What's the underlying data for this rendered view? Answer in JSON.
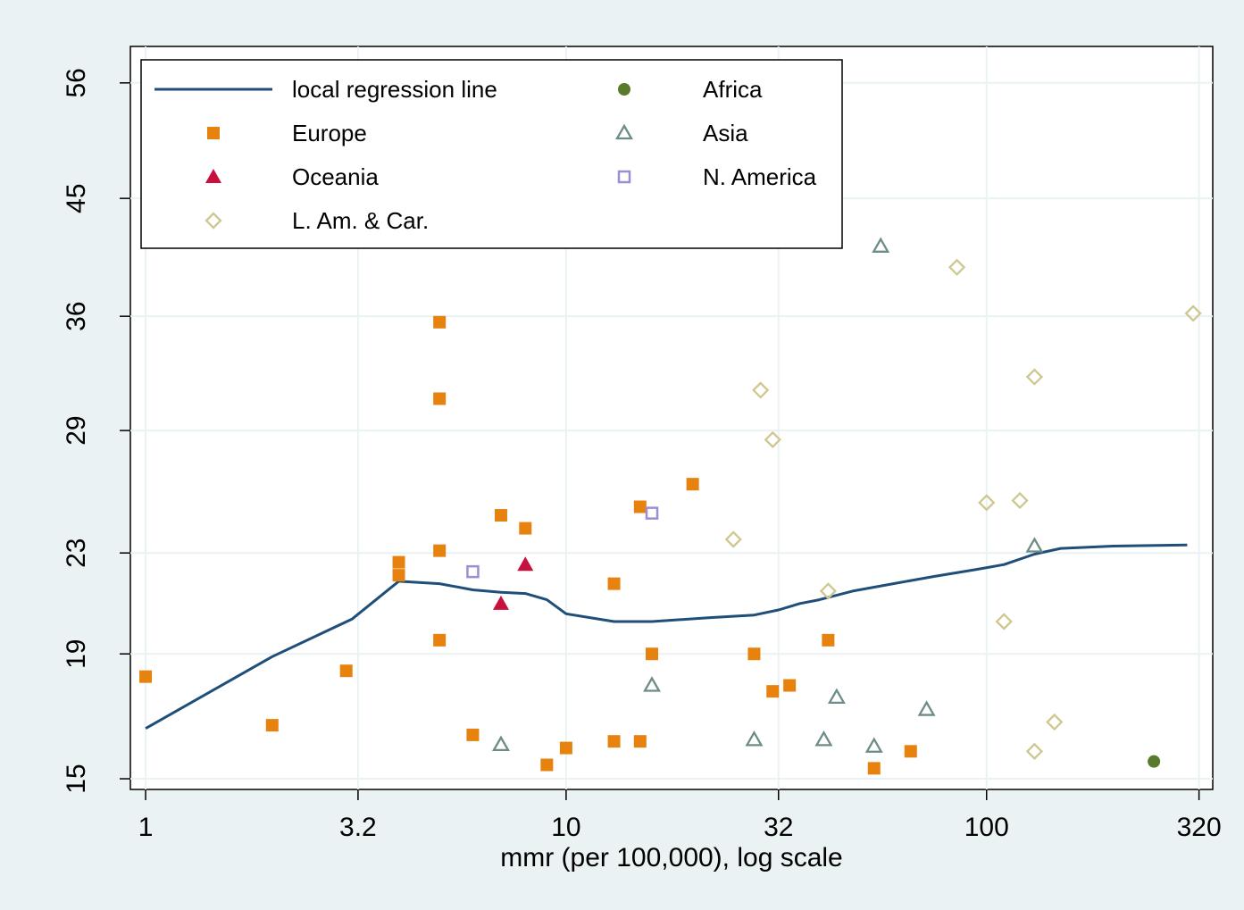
{
  "chart_data": {
    "type": "scatter",
    "xlabel": "mmr (per 100,000), log scale",
    "ylabel": "",
    "x_scale": "log",
    "y_scale": "log",
    "xlim": [
      0.92,
      345
    ],
    "ylim": [
      14.7,
      60
    ],
    "x_ticks": [
      {
        "value": 1,
        "label": "1"
      },
      {
        "value": 3.2,
        "label": "3.2"
      },
      {
        "value": 10,
        "label": "10"
      },
      {
        "value": 32,
        "label": "32"
      },
      {
        "value": 100,
        "label": "100"
      },
      {
        "value": 320,
        "label": "320"
      }
    ],
    "y_ticks": [
      {
        "value": 15,
        "label": "15"
      },
      {
        "value": 19,
        "label": "19"
      },
      {
        "value": 23,
        "label": "23"
      },
      {
        "value": 29,
        "label": "29"
      },
      {
        "value": 36,
        "label": "36"
      },
      {
        "value": 45,
        "label": "45"
      },
      {
        "value": 56,
        "label": "56"
      }
    ],
    "grid": true,
    "legend_position": "top-left",
    "regression_line": {
      "name": "local regression line",
      "color": "#1f4e79",
      "points": [
        [
          1,
          16.5
        ],
        [
          2,
          18.9
        ],
        [
          3.1,
          20.3
        ],
        [
          4,
          21.8
        ],
        [
          5,
          21.7
        ],
        [
          6,
          21.45
        ],
        [
          7,
          21.35
        ],
        [
          8,
          21.3
        ],
        [
          9,
          21.05
        ],
        [
          10,
          20.5
        ],
        [
          13,
          20.2
        ],
        [
          16,
          20.2
        ],
        [
          22,
          20.35
        ],
        [
          28,
          20.45
        ],
        [
          32,
          20.65
        ],
        [
          36,
          20.9
        ],
        [
          40,
          21.05
        ],
        [
          48,
          21.4
        ],
        [
          60,
          21.7
        ],
        [
          75,
          22.0
        ],
        [
          95,
          22.3
        ],
        [
          110,
          22.5
        ],
        [
          130,
          22.95
        ],
        [
          150,
          23.2
        ],
        [
          200,
          23.3
        ],
        [
          300,
          23.35
        ]
      ]
    },
    "series": [
      {
        "name": "Europe",
        "marker": "square-filled",
        "color": "#e8820e",
        "points": [
          [
            1,
            18.2
          ],
          [
            2,
            16.6
          ],
          [
            3,
            18.4
          ],
          [
            4,
            22.6
          ],
          [
            4,
            22.05
          ],
          [
            5,
            35.6
          ],
          [
            5,
            30.8
          ],
          [
            5,
            23.1
          ],
          [
            5,
            19.5
          ],
          [
            6,
            16.3
          ],
          [
            7,
            24.7
          ],
          [
            8,
            24.1
          ],
          [
            9,
            15.4
          ],
          [
            10,
            15.9
          ],
          [
            13,
            16.1
          ],
          [
            13,
            21.7
          ],
          [
            15,
            25.1
          ],
          [
            15,
            16.1
          ],
          [
            16,
            19
          ],
          [
            20,
            26.2
          ],
          [
            28,
            19
          ],
          [
            31,
            17.7
          ],
          [
            34,
            17.9
          ],
          [
            42,
            19.5
          ],
          [
            54,
            15.3
          ],
          [
            66,
            15.8
          ]
        ]
      },
      {
        "name": "Oceania",
        "marker": "triangle-filled",
        "color": "#c8103e",
        "points": [
          [
            7,
            20.9
          ],
          [
            8,
            22.5
          ]
        ]
      },
      {
        "name": "L. Am. & Car.",
        "marker": "diamond-open",
        "color": "#cfc690",
        "points": [
          [
            25,
            23.6
          ],
          [
            29,
            31.3
          ],
          [
            31,
            28.5
          ],
          [
            42,
            21.4
          ],
          [
            85,
            39.5
          ],
          [
            100,
            25.3
          ],
          [
            110,
            20.2
          ],
          [
            120,
            25.4
          ],
          [
            130,
            32.1
          ],
          [
            130,
            15.8
          ],
          [
            145,
            16.7
          ],
          [
            310,
            36.2
          ]
        ]
      },
      {
        "name": "Africa",
        "marker": "circle-filled",
        "color": "#5a7a2b",
        "points": [
          [
            250,
            15.5
          ]
        ]
      },
      {
        "name": "Asia",
        "marker": "triangle-open",
        "color": "#6e8c87",
        "points": [
          [
            7,
            16
          ],
          [
            16,
            17.9
          ],
          [
            28,
            16.15
          ],
          [
            41,
            16.15
          ],
          [
            44,
            17.5
          ],
          [
            56,
            41.1
          ],
          [
            54,
            15.95
          ],
          [
            72,
            17.1
          ],
          [
            130,
            23.3
          ]
        ]
      },
      {
        "name": "N. America",
        "marker": "square-open",
        "color": "#9b8ed4",
        "points": [
          [
            6,
            22.2
          ],
          [
            16,
            24.8
          ]
        ]
      }
    ],
    "legend": [
      {
        "label": "local regression line",
        "marker": "line",
        "color": "#1f4e79"
      },
      {
        "label": "Africa",
        "marker": "circle-filled",
        "color": "#5a7a2b"
      },
      {
        "label": "Europe",
        "marker": "square-filled",
        "color": "#e8820e"
      },
      {
        "label": "Asia",
        "marker": "triangle-open",
        "color": "#6e8c87"
      },
      {
        "label": "Oceania",
        "marker": "triangle-filled",
        "color": "#c8103e"
      },
      {
        "label": "N. America",
        "marker": "square-open",
        "color": "#9b8ed4"
      },
      {
        "label": "L. Am. & Car.",
        "marker": "diamond-open",
        "color": "#cfc690"
      }
    ]
  }
}
